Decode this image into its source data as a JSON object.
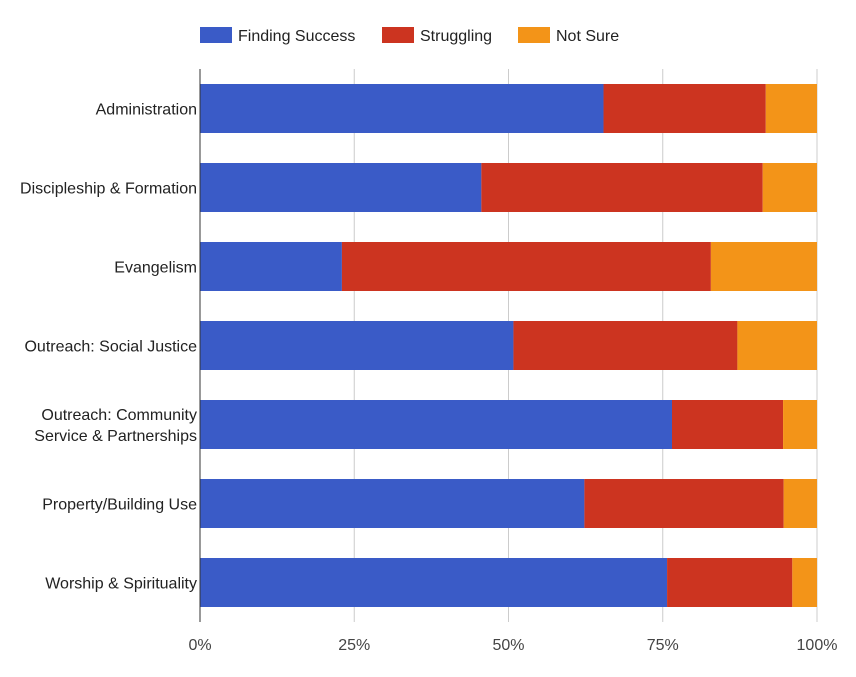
{
  "chart_data": {
    "type": "bar",
    "orientation": "horizontal",
    "stacked": "percent",
    "categories": [
      [
        "Administration"
      ],
      [
        "Discipleship & Formation"
      ],
      [
        "Evangelism"
      ],
      [
        "Outreach: Social Justice"
      ],
      [
        "Outreach: Community",
        "Service & Partnerships"
      ],
      [
        "Property/Building Use"
      ],
      [
        "Worship & Spirituality"
      ]
    ],
    "series": [
      {
        "name": "Finding Success",
        "color": "#3a5bc7",
        "values": [
          65.4,
          45.6,
          23.0,
          50.8,
          76.5,
          62.3,
          75.7
        ]
      },
      {
        "name": "Struggling",
        "color": "#cc3420",
        "values": [
          26.3,
          45.6,
          59.8,
          36.3,
          18.0,
          32.3,
          20.3
        ]
      },
      {
        "name": "Not Sure",
        "color": "#f39418",
        "values": [
          8.3,
          8.8,
          17.2,
          12.9,
          5.5,
          5.4,
          4.0
        ]
      }
    ],
    "x_ticks": [
      "0%",
      "25%",
      "50%",
      "75%",
      "100%"
    ],
    "xlim": [
      0,
      100
    ],
    "legend_position": "top",
    "grid": true
  }
}
